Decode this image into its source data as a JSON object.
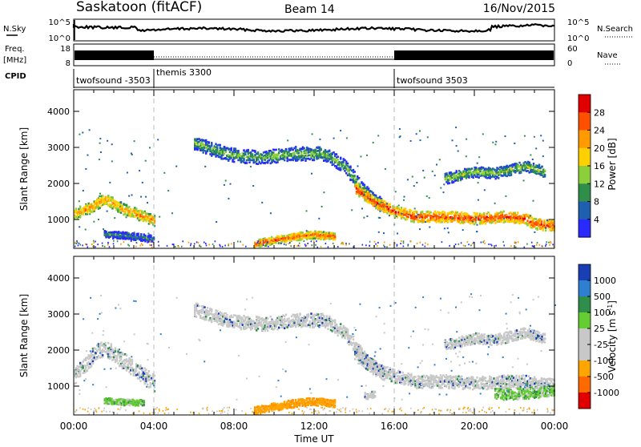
{
  "header": {
    "station": "Saskatoon (fitACF)",
    "beam": "Beam 14",
    "date": "16/Nov/2015"
  },
  "top_panels": {
    "nsky_label": "N.Sky",
    "nsky_ticks": [
      "10^5",
      "10^0"
    ],
    "nsearch_label": "N.Search",
    "nsearch_ticks": [
      "10^5",
      "10^0"
    ],
    "freq_label": "Freq.",
    "freq_unit": "[MHz]",
    "freq_ticks": [
      "18",
      "8"
    ],
    "nave_label": "Nave",
    "nave_ticks": [
      "60",
      "0"
    ],
    "cpid_label": "CPID",
    "cpid_segments": [
      {
        "name": "twofsound -3503",
        "start_h": 0,
        "end_h": 4
      },
      {
        "name": "themis 3300",
        "start_h": 4,
        "end_h": 16
      },
      {
        "name": "twofsound 3503",
        "start_h": 16,
        "end_h": 24
      }
    ]
  },
  "chart_data": [
    {
      "type": "heatmap",
      "name": "power",
      "ylabel": "Slant Range [km]",
      "yticks": [
        "4000",
        "3000",
        "2000",
        "1000"
      ],
      "ylim": [
        200,
        4600
      ],
      "xlim_hours": [
        0,
        24
      ],
      "colorbar": {
        "label": "Power [dB]",
        "ticks": [
          "28",
          "24",
          "20",
          "16",
          "12",
          "8",
          "4"
        ],
        "colors": [
          "#e00000",
          "#ff5000",
          "#ff9a00",
          "#ffd000",
          "#8ccf3a",
          "#2f8f4a",
          "#1f5fb0",
          "#2a2aff"
        ]
      },
      "bands": [
        {
          "t": [
            0.0,
            0.5,
            1.0,
            1.5,
            2.5,
            3.5,
            4.0
          ],
          "r": [
            1150,
            1300,
            1400,
            1600,
            1300,
            1100,
            1000
          ],
          "w": 260,
          "level": 0.75
        },
        {
          "t": [
            6.0,
            7.0,
            8.0,
            9.5,
            11.0,
            12.5,
            13.5,
            14.5,
            15.5
          ],
          "r": [
            3150,
            2950,
            2800,
            2750,
            2850,
            2850,
            2500,
            1800,
            1350
          ],
          "w": 320,
          "level": 0.4
        },
        {
          "t": [
            14.0,
            15.0,
            16.0,
            17.0,
            18.5,
            20.0,
            21.5,
            22.5,
            23.0,
            24.0
          ],
          "r": [
            1900,
            1500,
            1250,
            1100,
            1100,
            1050,
            1100,
            1050,
            900,
            850
          ],
          "w": 260,
          "level": 0.9
        },
        {
          "t": [
            9.0,
            10.0,
            11.0,
            12.0,
            13.0
          ],
          "r": [
            350,
            450,
            550,
            600,
            550
          ],
          "w": 180,
          "level": 0.85
        },
        {
          "t": [
            18.5,
            20.0,
            21.0,
            22.5,
            23.5
          ],
          "r": [
            2150,
            2350,
            2300,
            2500,
            2350
          ],
          "w": 250,
          "level": 0.45
        },
        {
          "t": [
            1.5,
            2.5,
            3.5,
            4.0
          ],
          "r": [
            620,
            580,
            520,
            480
          ],
          "w": 160,
          "level": 0.3
        }
      ]
    },
    {
      "type": "heatmap",
      "name": "velocity",
      "ylabel": "Slant Range [km]",
      "yticks": [
        "4000",
        "3000",
        "2000",
        "1000"
      ],
      "ylim": [
        200,
        4600
      ],
      "xlim_hours": [
        0,
        24
      ],
      "xticks": [
        "00:00",
        "04:00",
        "08:00",
        "12:00",
        "16:00",
        "20:00",
        "00:00"
      ],
      "xlabel": "Time UT",
      "colorbar": {
        "label": "Velocity [m s^-1]",
        "ticks": [
          "1000",
          "500",
          "100",
          "25",
          "-25",
          "-100",
          "-500",
          "-1000"
        ],
        "colors": [
          "#1a3fb5",
          "#2f7fd0",
          "#2f8f4a",
          "#66cc33",
          "#c8c8c8",
          "#c8c8c8",
          "#ffa500",
          "#ff6a00",
          "#e00000"
        ]
      },
      "bands": [
        {
          "t": [
            0.0,
            0.5,
            1.0,
            1.5,
            2.5,
            3.5,
            4.0
          ],
          "r": [
            1300,
            1600,
            1900,
            2100,
            1700,
            1300,
            1100
          ],
          "w": 380,
          "level": 0.5
        },
        {
          "t": [
            6.0,
            7.0,
            8.0,
            9.5,
            11.0,
            12.5,
            13.5,
            14.5,
            15.5
          ],
          "r": [
            3150,
            2950,
            2800,
            2750,
            2850,
            2850,
            2500,
            1800,
            1350
          ],
          "w": 320,
          "level": 0.5
        },
        {
          "t": [
            14.0,
            15.0,
            16.0,
            17.0,
            18.5,
            20.0,
            21.5,
            22.5,
            23.0,
            24.0
          ],
          "r": [
            1900,
            1500,
            1300,
            1150,
            1150,
            1100,
            1150,
            1150,
            1100,
            1050
          ],
          "w": 300,
          "level": 0.5
        },
        {
          "t": [
            9.0,
            10.0,
            11.0,
            12.0,
            13.0
          ],
          "r": [
            350,
            450,
            550,
            600,
            550
          ],
          "w": 180,
          "level": 0.85
        },
        {
          "t": [
            18.5,
            20.0,
            21.0,
            22.5,
            23.5
          ],
          "r": [
            2150,
            2350,
            2300,
            2500,
            2350
          ],
          "w": 250,
          "level": 0.5
        },
        {
          "t": [
            21.0,
            22.0,
            23.0,
            24.0
          ],
          "r": [
            800,
            800,
            850,
            900
          ],
          "w": 260,
          "level": 0.4
        },
        {
          "t": [
            1.5,
            2.5,
            3.5
          ],
          "r": [
            620,
            580,
            560
          ],
          "w": 140,
          "level": 0.4
        },
        {
          "t": [
            14.5,
            15.0
          ],
          "r": [
            750,
            800
          ],
          "w": 160,
          "level": 0.8
        }
      ]
    }
  ]
}
